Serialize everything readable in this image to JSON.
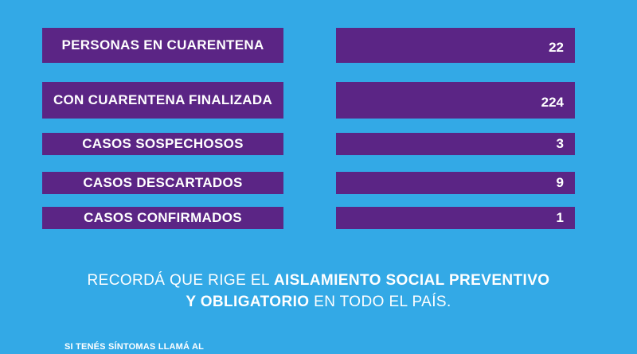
{
  "stats": [
    {
      "label": "PERSONAS EN CUARENTENA",
      "value": "22"
    },
    {
      "label": "CON CUARENTENA FINALIZADA",
      "value": "224"
    },
    {
      "label": "CASOS SOSPECHOSOS",
      "value": "3"
    },
    {
      "label": "CASOS DESCARTADOS",
      "value": "9"
    },
    {
      "label": "CASOS CONFIRMADOS",
      "value": "1"
    }
  ],
  "notice": {
    "line1_plain": "RECORDÁ QUE RIGE EL ",
    "line1_bold": "AISLAMIENTO SOCIAL PREVENTIVO",
    "line2_bold": "Y OBLIGATORIO",
    "line2_plain": " EN TODO EL PAÍS."
  },
  "footer": {
    "text": "SI TENÉS SÍNTOMAS LLAMÁ AL"
  },
  "colors": {
    "background": "#33a9e6",
    "box": "#5b2585",
    "text": "#ffffff"
  }
}
